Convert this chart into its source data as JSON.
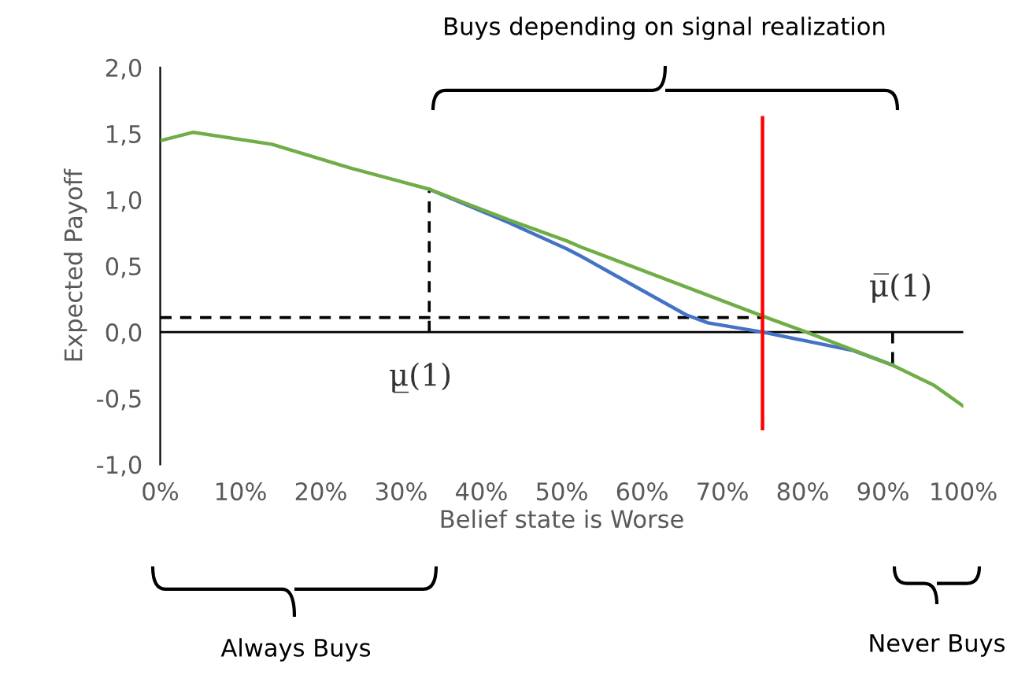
{
  "chart_data": {
    "type": "line",
    "xlabel": "Belief state is Worse",
    "ylabel": "Expected Payoff",
    "xlim": [
      0,
      100
    ],
    "ylim": [
      -1,
      2
    ],
    "xticks": [
      {
        "value": 0,
        "label": "0%"
      },
      {
        "value": 10,
        "label": "10%"
      },
      {
        "value": 20,
        "label": "20%"
      },
      {
        "value": 30,
        "label": "30%"
      },
      {
        "value": 40,
        "label": "40%"
      },
      {
        "value": 50,
        "label": "50%"
      },
      {
        "value": 60,
        "label": "60%"
      },
      {
        "value": 70,
        "label": "70%"
      },
      {
        "value": 80,
        "label": "80%"
      },
      {
        "value": 90,
        "label": "90%"
      },
      {
        "value": 100,
        "label": "100%"
      }
    ],
    "yticks": [
      {
        "value": -1,
        "label": "-1,0"
      },
      {
        "value": -0.5,
        "label": "-0,5"
      },
      {
        "value": 0,
        "label": "0,0"
      },
      {
        "value": 0.5,
        "label": "0,5"
      },
      {
        "value": 1,
        "label": "1,0"
      },
      {
        "value": 1.5,
        "label": "1,5"
      },
      {
        "value": 2,
        "label": "2,0"
      }
    ],
    "grid": false,
    "legend": false,
    "marker": "none",
    "series": [
      {
        "color": "#4472c4",
        "x": [
          33.5,
          43.3,
          50.6,
          52.5,
          65.5,
          68.2,
          75,
          86.3,
          91.2
        ],
        "values": [
          1.08,
          0.83,
          0.63,
          0.57,
          0.13,
          0.07,
          0.0,
          -0.14,
          -0.25
        ]
      },
      {
        "color": "#70ad47",
        "x": [
          0.2,
          4.1,
          13.9,
          23.7,
          33.5,
          43.3,
          50.6,
          52.5,
          75.5,
          80,
          91.2,
          96.3,
          100
        ],
        "values": [
          1.45,
          1.51,
          1.42,
          1.24,
          1.08,
          0.85,
          0.69,
          0.64,
          0.11,
          0.01,
          -0.25,
          -0.4,
          -0.56
        ]
      },
      {
        "color": "#ff0000",
        "x": [
          75,
          75
        ],
        "values": [
          1.62,
          -0.73
        ]
      },
      {
        "color": "#000000",
        "line_style": "dashed",
        "x": [
          33.5,
          33.5
        ],
        "values": [
          0,
          1.08
        ]
      },
      {
        "color": "#000000",
        "line_style": "dashed",
        "x": [
          0,
          75
        ],
        "values": [
          0.11,
          0.11
        ]
      },
      {
        "color": "#000000",
        "line_style": "dashed",
        "x": [
          91.2,
          91.2
        ],
        "values": [
          0,
          -0.25
        ]
      }
    ],
    "ref_lines": [
      {
        "axis": "y",
        "value": 0,
        "color": "#000000"
      }
    ],
    "annotations": [
      "Buys depending on signal realization",
      "Always Buys",
      "Never Buys",
      "μ̲(1)",
      "μ̅(1)"
    ]
  }
}
